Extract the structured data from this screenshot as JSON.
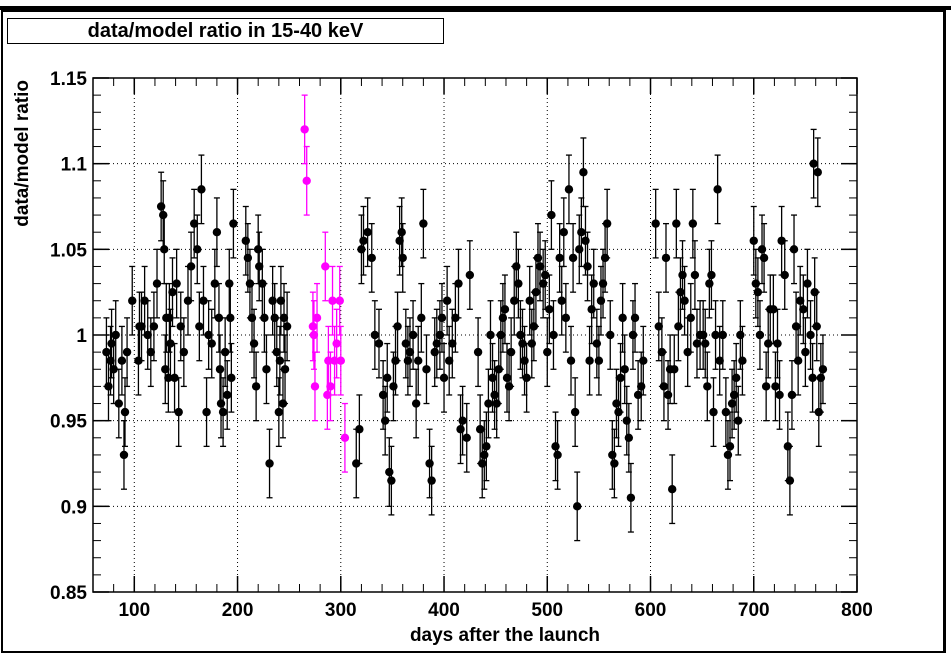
{
  "chart_data": {
    "type": "scatter",
    "title": "data/model ratio in 15-40 keV",
    "xlabel": "days after the launch",
    "ylabel": "data/model ratio",
    "xlim": [
      60,
      800
    ],
    "ylim": [
      0.85,
      1.15
    ],
    "xticks": [
      "100",
      "200",
      "300",
      "400",
      "500",
      "600",
      "700",
      "800"
    ],
    "yticks": [
      "0.85",
      "0.9",
      "0.95",
      "1",
      "1.05",
      "1.1",
      "1.15"
    ],
    "grid": true,
    "error_bars": true,
    "series": [
      {
        "color": "#000000",
        "points": [
          [
            73,
            0.99
          ],
          [
            75,
            0.97
          ],
          [
            77,
            0.985
          ],
          [
            78,
            0.995
          ],
          [
            80,
            0.98
          ],
          [
            82,
            1.0
          ],
          [
            85,
            0.96
          ],
          [
            88,
            0.985
          ],
          [
            90,
            0.93
          ],
          [
            91,
            0.955
          ],
          [
            93,
            0.99
          ],
          [
            98,
            1.02
          ],
          [
            104,
            0.985
          ],
          [
            105,
            1.005
          ],
          [
            107,
            1.005
          ],
          [
            110,
            1.02
          ],
          [
            113,
            1.0
          ],
          [
            116,
            0.99
          ],
          [
            119,
            1.005
          ],
          [
            122,
            1.03
          ],
          [
            126,
            1.075
          ],
          [
            128,
            1.07
          ],
          [
            129,
            1.05
          ],
          [
            130,
            0.98
          ],
          [
            131,
            1.01
          ],
          [
            133,
            0.975
          ],
          [
            134,
            1.01
          ],
          [
            135,
            0.995
          ],
          [
            137,
            1.025
          ],
          [
            139,
            0.975
          ],
          [
            141,
            1.03
          ],
          [
            143,
            0.955
          ],
          [
            145,
            1.005
          ],
          [
            148,
            0.99
          ],
          [
            152,
            1.02
          ],
          [
            155,
            1.04
          ],
          [
            158,
            1.065
          ],
          [
            161,
            1.05
          ],
          [
            163,
            1.005
          ],
          [
            165,
            1.085
          ],
          [
            167,
            1.02
          ],
          [
            170,
            0.955
          ],
          [
            172,
            1.0
          ],
          [
            175,
            0.995
          ],
          [
            178,
            1.03
          ],
          [
            180,
            1.06
          ],
          [
            182,
            1.01
          ],
          [
            183,
            0.98
          ],
          [
            184,
            0.96
          ],
          [
            186,
            0.955
          ],
          [
            188,
            0.99
          ],
          [
            190,
            0.965
          ],
          [
            192,
            1.03
          ],
          [
            193,
            1.01
          ],
          [
            194,
            0.975
          ],
          [
            196,
            1.065
          ],
          [
            208,
            1.055
          ],
          [
            210,
            1.045
          ],
          [
            212,
            1.03
          ],
          [
            214,
            1.01
          ],
          [
            216,
            0.995
          ],
          [
            218,
            0.97
          ],
          [
            220,
            1.05
          ],
          [
            221,
            1.04
          ],
          [
            224,
            1.03
          ],
          [
            226,
            1.01
          ],
          [
            228,
            0.98
          ],
          [
            231,
            0.925
          ],
          [
            234,
            1.02
          ],
          [
            236,
            1.01
          ],
          [
            238,
            0.99
          ],
          [
            240,
            0.955
          ],
          [
            241,
            0.985
          ],
          [
            242,
            1.02
          ],
          [
            244,
            0.96
          ],
          [
            245,
            1.01
          ],
          [
            246,
            0.98
          ],
          [
            248,
            1.005
          ],
          [
            315,
            0.925
          ],
          [
            318,
            0.945
          ],
          [
            320,
            1.05
          ],
          [
            322,
            1.055
          ],
          [
            326,
            1.06
          ],
          [
            330,
            1.045
          ],
          [
            333,
            1.0
          ],
          [
            337,
            0.995
          ],
          [
            341,
            0.965
          ],
          [
            343,
            0.95
          ],
          [
            345,
            0.975
          ],
          [
            347,
            0.92
          ],
          [
            349,
            0.915
          ],
          [
            351,
            0.97
          ],
          [
            353,
            0.985
          ],
          [
            355,
            1.005
          ],
          [
            357,
            1.055
          ],
          [
            359,
            1.06
          ],
          [
            360,
            1.045
          ],
          [
            363,
            0.995
          ],
          [
            365,
            0.985
          ],
          [
            367,
            0.99
          ],
          [
            370,
            1.0
          ],
          [
            373,
            0.96
          ],
          [
            375,
            0.985
          ],
          [
            378,
            1.01
          ],
          [
            380,
            1.065
          ],
          [
            383,
            0.98
          ],
          [
            386,
            0.925
          ],
          [
            388,
            0.915
          ],
          [
            391,
            0.99
          ],
          [
            393,
            0.995
          ],
          [
            396,
            1.0
          ],
          [
            398,
            1.01
          ],
          [
            400,
            0.975
          ],
          [
            403,
            1.02
          ],
          [
            405,
            0.985
          ],
          [
            408,
            0.995
          ],
          [
            411,
            1.01
          ],
          [
            414,
            1.03
          ],
          [
            416,
            0.945
          ],
          [
            418,
            0.95
          ],
          [
            422,
            0.94
          ],
          [
            425,
            1.035
          ],
          [
            433,
            0.99
          ],
          [
            435,
            0.945
          ],
          [
            437,
            0.925
          ],
          [
            439,
            0.93
          ],
          [
            441,
            0.935
          ],
          [
            443,
            0.96
          ],
          [
            445,
            1.0
          ],
          [
            447,
            0.975
          ],
          [
            449,
            0.965
          ],
          [
            451,
            0.96
          ],
          [
            453,
            0.98
          ],
          [
            455,
            1.0
          ],
          [
            457,
            1.01
          ],
          [
            459,
            1.015
          ],
          [
            461,
            0.975
          ],
          [
            463,
            0.97
          ],
          [
            465,
            0.99
          ],
          [
            468,
            1.02
          ],
          [
            470,
            1.04
          ],
          [
            472,
            1.03
          ],
          [
            474,
            1.0
          ],
          [
            476,
            0.995
          ],
          [
            478,
            0.985
          ],
          [
            480,
            0.975
          ],
          [
            483,
            1.02
          ],
          [
            485,
            0.995
          ],
          [
            487,
            1.005
          ],
          [
            489,
            1.025
          ],
          [
            491,
            1.045
          ],
          [
            493,
            1.04
          ],
          [
            496,
            1.03
          ],
          [
            498,
            1.035
          ],
          [
            500,
            0.99
          ],
          [
            502,
            1.015
          ],
          [
            504,
            1.07
          ],
          [
            506,
            1.0
          ],
          [
            508,
            0.935
          ],
          [
            510,
            0.93
          ],
          [
            512,
            1.045
          ],
          [
            514,
            1.02
          ],
          [
            516,
            1.06
          ],
          [
            518,
            1.01
          ],
          [
            521,
            1.085
          ],
          [
            523,
            0.985
          ],
          [
            525,
            1.045
          ],
          [
            527,
            0.955
          ],
          [
            529,
            0.9
          ],
          [
            531,
            1.05
          ],
          [
            533,
            1.06
          ],
          [
            535,
            1.095
          ],
          [
            537,
            1.055
          ],
          [
            539,
            1.04
          ],
          [
            541,
            0.985
          ],
          [
            543,
            1.015
          ],
          [
            545,
            1.03
          ],
          [
            548,
            0.995
          ],
          [
            550,
            0.985
          ],
          [
            552,
            1.02
          ],
          [
            554,
            1.03
          ],
          [
            556,
            1.045
          ],
          [
            558,
            1.065
          ],
          [
            561,
            1.0
          ],
          [
            563,
            0.93
          ],
          [
            565,
            0.925
          ],
          [
            567,
            0.96
          ],
          [
            569,
            0.955
          ],
          [
            571,
            0.975
          ],
          [
            573,
            1.01
          ],
          [
            575,
            0.98
          ],
          [
            577,
            0.95
          ],
          [
            579,
            0.94
          ],
          [
            581,
            0.905
          ],
          [
            583,
            1.0
          ],
          [
            585,
            1.01
          ],
          [
            588,
            0.965
          ],
          [
            591,
            0.97
          ],
          [
            593,
            0.985
          ],
          [
            605,
            1.065
          ],
          [
            608,
            1.005
          ],
          [
            611,
            0.99
          ],
          [
            613,
            0.97
          ],
          [
            615,
            1.045
          ],
          [
            617,
            0.965
          ],
          [
            619,
            0.98
          ],
          [
            621,
            0.91
          ],
          [
            623,
            0.98
          ],
          [
            625,
            1.065
          ],
          [
            627,
            1.005
          ],
          [
            629,
            1.025
          ],
          [
            631,
            1.035
          ],
          [
            633,
            1.02
          ],
          [
            636,
            0.99
          ],
          [
            639,
            1.01
          ],
          [
            641,
            1.065
          ],
          [
            643,
            1.035
          ],
          [
            645,
            0.995
          ],
          [
            648,
            1.0
          ],
          [
            651,
            1.0
          ],
          [
            653,
            0.995
          ],
          [
            655,
            0.97
          ],
          [
            657,
            1.03
          ],
          [
            659,
            1.035
          ],
          [
            661,
            0.955
          ],
          [
            663,
            1.0
          ],
          [
            665,
            1.085
          ],
          [
            667,
            0.985
          ],
          [
            670,
            1.0
          ],
          [
            673,
            0.955
          ],
          [
            675,
            0.93
          ],
          [
            677,
            0.935
          ],
          [
            679,
            0.96
          ],
          [
            681,
            0.965
          ],
          [
            683,
            0.975
          ],
          [
            685,
            0.95
          ],
          [
            687,
            1.0
          ],
          [
            689,
            0.985
          ],
          [
            700,
            1.055
          ],
          [
            702,
            1.03
          ],
          [
            704,
            1.025
          ],
          [
            706,
            1.0
          ],
          [
            708,
            1.05
          ],
          [
            710,
            1.045
          ],
          [
            712,
            0.97
          ],
          [
            714,
            0.995
          ],
          [
            716,
            1.015
          ],
          [
            719,
            1.015
          ],
          [
            721,
            0.97
          ],
          [
            723,
            0.995
          ],
          [
            725,
            0.965
          ],
          [
            727,
            1.055
          ],
          [
            730,
            1.035
          ],
          [
            733,
            0.935
          ],
          [
            735,
            0.915
          ],
          [
            737,
            0.965
          ],
          [
            739,
            1.05
          ],
          [
            741,
            1.005
          ],
          [
            743,
            0.985
          ],
          [
            745,
            1.02
          ],
          [
            748,
            1.015
          ],
          [
            750,
            0.99
          ],
          [
            752,
            1.03
          ],
          [
            755,
            1.0
          ],
          [
            757,
            0.975
          ],
          [
            759,
            1.025
          ],
          [
            761,
            1.005
          ],
          [
            763,
            0.955
          ],
          [
            765,
            0.975
          ],
          [
            767,
            0.98
          ],
          [
            758,
            1.1
          ],
          [
            762,
            1.095
          ]
        ]
      },
      {
        "color": "#ff00ff",
        "points": [
          [
            265,
            1.12
          ],
          [
            267,
            1.09
          ],
          [
            273,
            1.005
          ],
          [
            274,
            1.0
          ],
          [
            275,
            0.97
          ],
          [
            277,
            1.01
          ],
          [
            285,
            1.04
          ],
          [
            287,
            0.965
          ],
          [
            288,
            0.985
          ],
          [
            290,
            0.97
          ],
          [
            292,
            1.02
          ],
          [
            294,
            0.985
          ],
          [
            296,
            0.995
          ],
          [
            299,
            1.02
          ],
          [
            300,
            0.985
          ],
          [
            304,
            0.94
          ]
        ]
      }
    ]
  }
}
